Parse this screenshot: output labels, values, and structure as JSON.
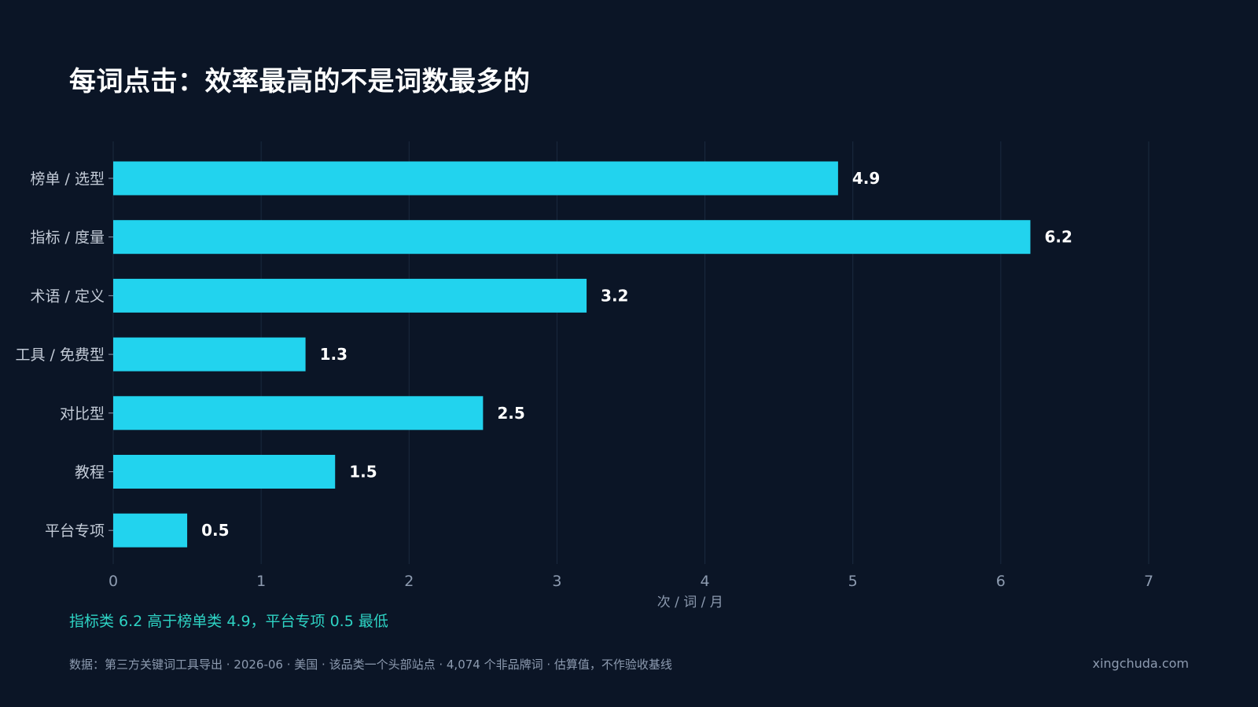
{
  "title": "每词点击：效率最高的不是词数最多的",
  "insight": "指标类 6.2 高于榜单类 4.9，平台专项 0.5 最低",
  "footer": "数据：第三方关键词工具导出 · 2026-06 · 美国 · 该品类一个头部站点 · 4,074 个非品牌词 · 估算值，不作验收基线",
  "brand": "xingchuda.com",
  "colors": {
    "background": "#0b1526",
    "bar": "#22d3ee",
    "grid": "#1b2a3f",
    "tick_label": "#8d9bb0",
    "insight": "#2ed3c4"
  },
  "chart_data": {
    "type": "bar",
    "orientation": "horizontal",
    "title": "每词点击：效率最高的不是词数最多的",
    "xlabel": "次 / 词 / 月",
    "ylabel": "",
    "categories": [
      "榜单 / 选型",
      "指标 / 度量",
      "术语 / 定义",
      "工具 / 免费型",
      "对比型",
      "教程",
      "平台专项"
    ],
    "values": [
      4.9,
      6.2,
      3.2,
      1.3,
      2.5,
      1.5,
      0.5
    ],
    "value_labels": [
      "4.9",
      "6.2",
      "3.2",
      "1.3",
      "2.5",
      "1.5",
      "0.5"
    ],
    "xlim": [
      0,
      7
    ],
    "xticks": [
      0,
      1,
      2,
      3,
      4,
      5,
      6,
      7
    ],
    "grid": "vertical",
    "legend": "none"
  }
}
